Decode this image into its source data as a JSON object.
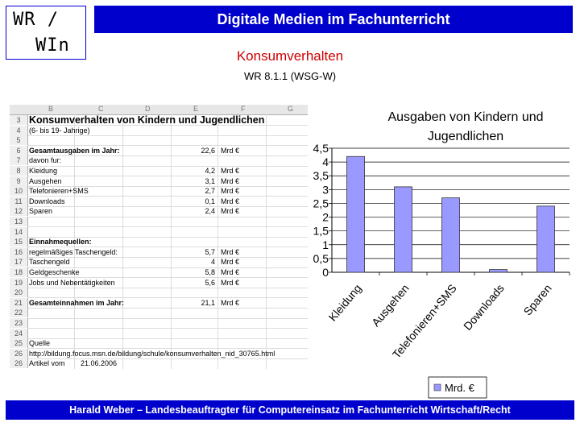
{
  "logo": {
    "line1": "WR /",
    "line2": "WIn"
  },
  "header": {
    "title": "Digitale Medien im Fachunterricht"
  },
  "subtitle": "Konsumverhalten",
  "subtitle2": "WR 8.1.1 (WSG-W)",
  "spreadsheet": {
    "columns": [
      "B",
      "C",
      "D",
      "E",
      "F",
      "G"
    ],
    "rows": [
      {
        "num": "3",
        "a": "Konsumverhalten von Kindern und Jugendlichen",
        "b": "",
        "c": "",
        "style": "title"
      },
      {
        "num": "4",
        "a": "(6- bis 19- Jahrige)",
        "b": "",
        "c": ""
      },
      {
        "num": "5",
        "a": "",
        "b": "",
        "c": ""
      },
      {
        "num": "6",
        "a": "Gesamtausgaben im Jahr:",
        "b": "22,6",
        "c": "Mrd €",
        "style": "bold"
      },
      {
        "num": "7",
        "a": "davon fur:",
        "b": "",
        "c": ""
      },
      {
        "num": "8",
        "a": "Kleidung",
        "b": "4,2",
        "c": "Mrd €"
      },
      {
        "num": "9",
        "a": "Ausgehen",
        "b": "3,1",
        "c": "Mrd €"
      },
      {
        "num": "10",
        "a": "Telefonieren+SMS",
        "b": "2,7",
        "c": "Mrd €"
      },
      {
        "num": "11",
        "a": "Downloads",
        "b": "0,1",
        "c": "Mrd €"
      },
      {
        "num": "12",
        "a": "Sparen",
        "b": "2,4",
        "c": "Mrd €"
      },
      {
        "num": "13",
        "a": "",
        "b": "",
        "c": ""
      },
      {
        "num": "14",
        "a": "",
        "b": "",
        "c": ""
      },
      {
        "num": "15",
        "a": "Einnahmequellen:",
        "b": "",
        "c": "",
        "style": "bold"
      },
      {
        "num": "16",
        "a": "regelmäßiges Taschengeld:",
        "b": "5,7",
        "c": "Mrd €"
      },
      {
        "num": "17",
        "a": "Taschengeld",
        "b": "4",
        "c": "Mrd €"
      },
      {
        "num": "18",
        "a": "Geldgeschenke",
        "b": "5,8",
        "c": "Mrd €"
      },
      {
        "num": "19",
        "a": "Jobs und Nebentätigkeiten",
        "b": "5,6",
        "c": "Mrd €"
      },
      {
        "num": "20",
        "a": "",
        "b": "",
        "c": ""
      },
      {
        "num": "21",
        "a": "Gesamteinnahmen im Jahr:",
        "b": "21,1",
        "c": "Mrd €",
        "style": "bold"
      },
      {
        "num": "22",
        "a": "",
        "b": "",
        "c": ""
      },
      {
        "num": "23",
        "a": "",
        "b": "",
        "c": ""
      },
      {
        "num": "24",
        "a": "",
        "b": "",
        "c": ""
      },
      {
        "num": "25",
        "a": "Quelle",
        "b": "",
        "c": ""
      },
      {
        "num": "26",
        "a": "http://bildung.focus.msn.de/bildung/schule/konsumverhalten_nid_30765.html",
        "b": "",
        "c": ""
      },
      {
        "num": "26",
        "a": "Artikel vom",
        "b": "",
        "c": "",
        "date": "21.06.2006"
      }
    ]
  },
  "chart_data": {
    "type": "bar",
    "title": "Ausgaben von Kindern und Jugendlichen",
    "categories": [
      "Kleidung",
      "Ausgehen",
      "Telefonieren+SMS",
      "Downloads",
      "Sparen"
    ],
    "series": [
      {
        "name": "Mrd. €",
        "values": [
          4.2,
          3.1,
          2.7,
          0.1,
          2.4
        ]
      }
    ],
    "yticks": [
      "0",
      "0,5",
      "1",
      "1,5",
      "2",
      "2,5",
      "3",
      "3,5",
      "4",
      "4,5"
    ],
    "ylim": [
      0,
      4.5
    ],
    "legend": "bottom-right",
    "bar_color": "#9999ff",
    "grid": true
  },
  "footer": {
    "text": "Harald Weber – Landesbeauftragter für Computereinsatz im Fachunterricht Wirtschaft/Recht"
  }
}
